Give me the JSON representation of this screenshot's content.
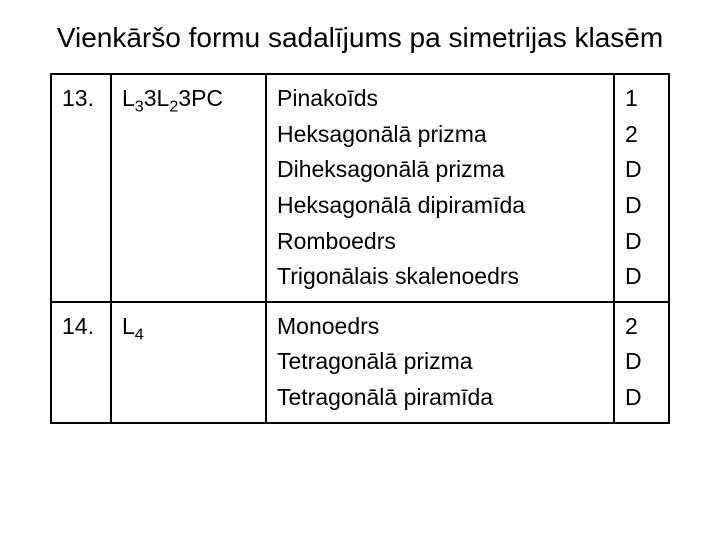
{
  "title": "Vienkāršo formu sadalījums pa simetrijas klasēm",
  "table": {
    "columns": [
      "num",
      "code",
      "forms",
      "values"
    ],
    "rows": [
      {
        "num": "13.",
        "code_parts": [
          "L",
          "3",
          "3L",
          "2",
          "3PC"
        ],
        "forms": [
          "Pinakoīds",
          "Heksagonālā prizma",
          "Diheksagonālā prizma",
          "Heksagonālā dipiramīda",
          "Romboedrs",
          "Trigonālais skalenoedrs"
        ],
        "values": [
          "1",
          "2",
          "D",
          "D",
          "D",
          "D"
        ]
      },
      {
        "num": "14.",
        "code_parts": [
          "L",
          "4",
          "",
          "",
          ""
        ],
        "forms": [
          "Monoedrs",
          "Tetragonālā prizma",
          "Tetragonālā piramīda"
        ],
        "values": [
          "2",
          "D",
          "D"
        ]
      }
    ]
  },
  "style": {
    "background_color": "#ffffff",
    "text_color": "#000000",
    "border_color": "#000000",
    "title_fontsize": 28,
    "cell_fontsize": 23,
    "font_family": "Arial"
  }
}
